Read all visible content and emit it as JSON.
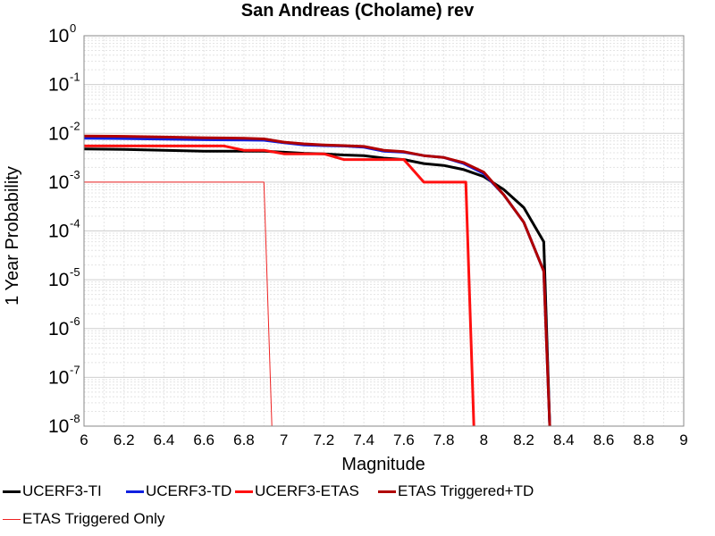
{
  "chart_data": {
    "type": "line",
    "title": "San Andreas (Cholame) rev",
    "xlabel": "Magnitude",
    "ylabel": "1 Year Probability",
    "xlim": [
      6,
      9
    ],
    "ylim": [
      1e-08,
      1
    ],
    "yscale": "log",
    "grid": true,
    "x_ticks": [
      "6",
      "6.2",
      "6.4",
      "6.6",
      "6.8",
      "7",
      "7.2",
      "7.4",
      "7.6",
      "7.8",
      "8",
      "8.2",
      "8.4",
      "8.6",
      "8.8",
      "9"
    ],
    "y_ticks": [
      {
        "base": "10",
        "exp": "0",
        "value": 1
      },
      {
        "base": "10",
        "exp": "-1",
        "value": 0.1
      },
      {
        "base": "10",
        "exp": "-2",
        "value": 0.01
      },
      {
        "base": "10",
        "exp": "-3",
        "value": 0.001
      },
      {
        "base": "10",
        "exp": "-4",
        "value": 0.0001
      },
      {
        "base": "10",
        "exp": "-5",
        "value": 1e-05
      },
      {
        "base": "10",
        "exp": "-6",
        "value": 1e-06
      },
      {
        "base": "10",
        "exp": "-7",
        "value": 1e-07
      },
      {
        "base": "10",
        "exp": "-8",
        "value": 1e-08
      }
    ],
    "legend_position": "bottom",
    "series": [
      {
        "name": "UCERF3-TI",
        "color": "#000000",
        "width": 3,
        "x": [
          6.0,
          6.2,
          6.4,
          6.6,
          6.8,
          6.9,
          7.0,
          7.1,
          7.2,
          7.3,
          7.4,
          7.5,
          7.6,
          7.7,
          7.8,
          7.9,
          8.0,
          8.1,
          8.2,
          8.3,
          8.33
        ],
        "y": [
          0.0048,
          0.0047,
          0.0045,
          0.0043,
          0.0043,
          0.0043,
          0.0041,
          0.0039,
          0.0038,
          0.0036,
          0.0035,
          0.0031,
          0.0029,
          0.0024,
          0.0022,
          0.0018,
          0.0013,
          0.0007,
          0.0003,
          6e-05,
          1e-08
        ]
      },
      {
        "name": "UCERF3-TD",
        "color": "#1020e0",
        "width": 3,
        "x": [
          6.0,
          6.2,
          6.4,
          6.6,
          6.8,
          6.9,
          7.0,
          7.1,
          7.2,
          7.3,
          7.4,
          7.5,
          7.6,
          7.7,
          7.8,
          7.9,
          8.0,
          8.1,
          8.2,
          8.3,
          8.33
        ],
        "y": [
          0.0079,
          0.0078,
          0.0076,
          0.0074,
          0.0073,
          0.0072,
          0.0064,
          0.0058,
          0.0056,
          0.0055,
          0.0052,
          0.0043,
          0.0041,
          0.0035,
          0.0032,
          0.0024,
          0.0015,
          0.00055,
          0.00015,
          1.5e-05,
          1e-08
        ]
      },
      {
        "name": "UCERF3-ETAS",
        "color": "#ff1010",
        "width": 3,
        "x": [
          6.0,
          6.2,
          6.4,
          6.6,
          6.7,
          6.8,
          6.9,
          7.0,
          7.2,
          7.3,
          7.4,
          7.5,
          7.6,
          7.7,
          7.8,
          7.9,
          7.91,
          7.95
        ],
        "y": [
          0.0055,
          0.0055,
          0.0055,
          0.0055,
          0.0055,
          0.0045,
          0.0045,
          0.0038,
          0.0038,
          0.0029,
          0.0029,
          0.0029,
          0.0029,
          0.001,
          0.001,
          0.001,
          0.001,
          1e-08
        ]
      },
      {
        "name": "ETAS Triggered+TD",
        "color": "#b00000",
        "width": 3,
        "x": [
          6.0,
          6.2,
          6.4,
          6.6,
          6.8,
          6.9,
          7.0,
          7.1,
          7.2,
          7.3,
          7.4,
          7.5,
          7.6,
          7.7,
          7.8,
          7.9,
          8.0,
          8.1,
          8.2,
          8.3,
          8.33
        ],
        "y": [
          0.0088,
          0.0087,
          0.0084,
          0.0081,
          0.0079,
          0.0077,
          0.0066,
          0.0061,
          0.0058,
          0.0056,
          0.0054,
          0.0045,
          0.0042,
          0.0035,
          0.0032,
          0.0025,
          0.0016,
          0.00055,
          0.00015,
          1.5e-05,
          1e-08
        ]
      },
      {
        "name": "ETAS Triggered Only",
        "color": "#ee2222",
        "width": 1,
        "x": [
          6.0,
          6.9,
          6.94
        ],
        "y": [
          0.001,
          0.001,
          1e-08
        ]
      }
    ]
  }
}
